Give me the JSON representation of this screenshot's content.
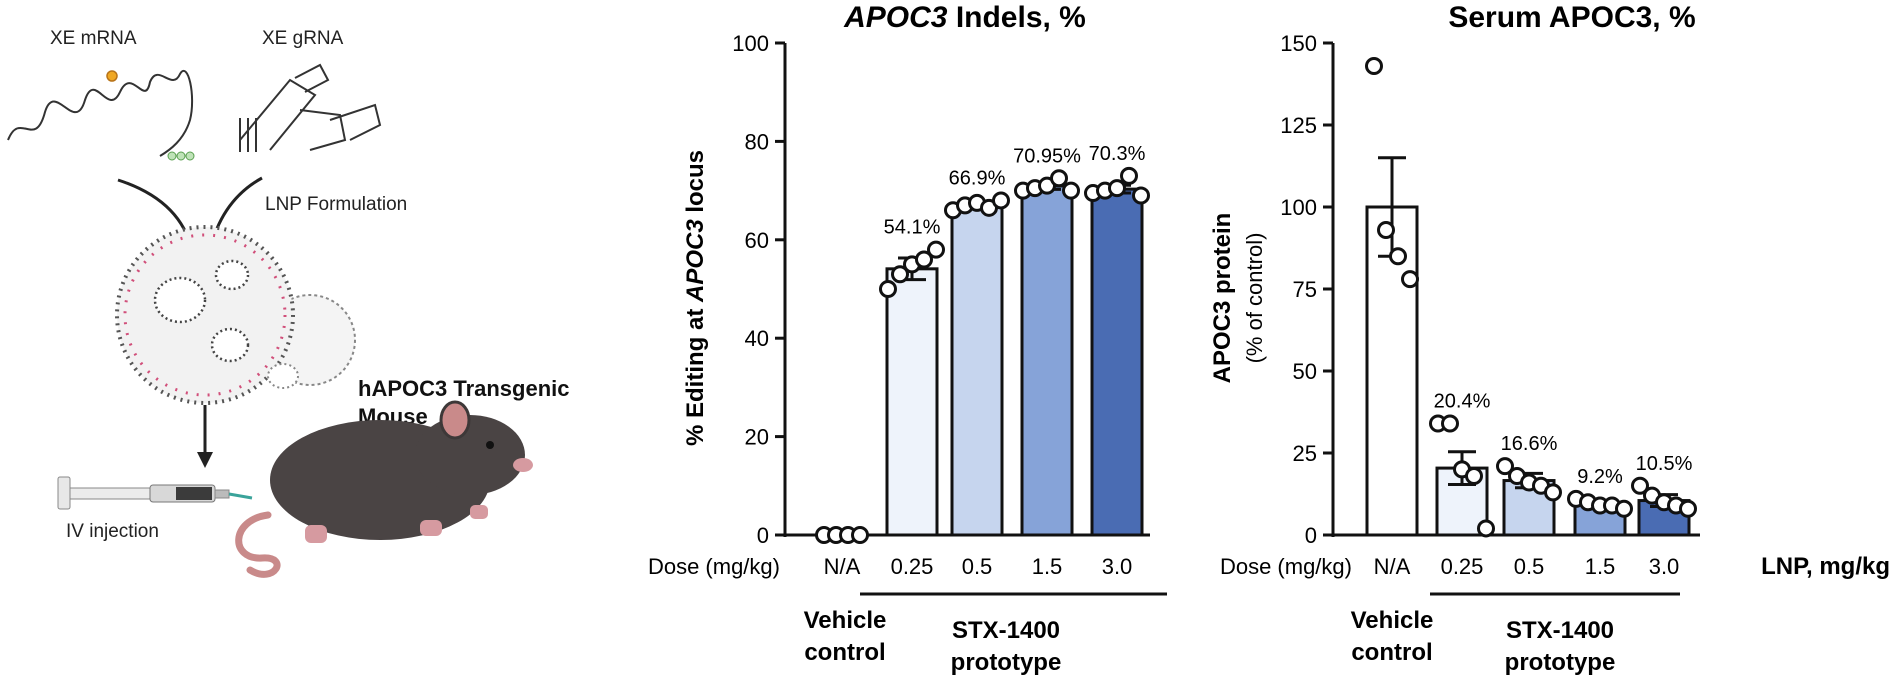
{
  "schematic": {
    "mrna_label": "XE mRNA",
    "grna_label": "XE gRNA",
    "lnp_label": "LNP Formulation",
    "mouse_label": "hAPOC3 Transgenic Mouse",
    "iv_label": "IV injection"
  },
  "charts": {
    "dose_prefix": "Dose (mg/kg)",
    "vehicle_label": [
      "Vehicle",
      "control"
    ],
    "product_label": [
      "STX-1400",
      "prototype"
    ],
    "lnp_label": "LNP, mg/kg"
  },
  "colors": {
    "bar_0.25": "#eef3fb",
    "bar_0.5": "#c6d5ee",
    "bar_1.5": "#86a3d8",
    "bar_3.0": "#4a6cb3",
    "vehicle": "#ffffff"
  },
  "chart_data": [
    {
      "type": "bar",
      "title_italic": "APOC3",
      "title_rest": " Indels, %",
      "ylabel_parts": [
        "% Editing at ",
        "APOC3",
        " locus"
      ],
      "ylim": [
        0,
        100
      ],
      "yticks": [
        "0",
        "20",
        "40",
        "60",
        "80",
        "100"
      ],
      "categories": [
        "N/A",
        "0.25",
        "0.5",
        "1.5",
        "3.0"
      ],
      "values": [
        0,
        54.1,
        66.9,
        70.95,
        70.3
      ],
      "error": [
        0,
        2.2,
        0.6,
        0.7,
        0.8
      ],
      "data_labels": [
        "",
        "54.1%",
        "66.9%",
        "70.95%",
        "70.3%"
      ],
      "points": [
        [
          0,
          0,
          0,
          0
        ],
        [
          50,
          53,
          55,
          56,
          58
        ],
        [
          66,
          67,
          67.5,
          66.5,
          68
        ],
        [
          70,
          70.5,
          71,
          72.5,
          70
        ],
        [
          69.5,
          70,
          70.5,
          73,
          69
        ]
      ]
    },
    {
      "type": "bar",
      "title": "Serum APOC3, %",
      "ylabel": "APOC3 protein",
      "ylabel_sub": "(% of control)",
      "ylim": [
        0,
        150
      ],
      "yticks": [
        "0",
        "25",
        "50",
        "75",
        "100",
        "125",
        "150"
      ],
      "categories": [
        "N/A",
        "0.25",
        "0.5",
        "1.5",
        "3.0"
      ],
      "values": [
        100,
        20.4,
        16.6,
        9.2,
        10.5
      ],
      "error": [
        15,
        5,
        2.2,
        1,
        1.8
      ],
      "data_labels": [
        "",
        "20.4%",
        "16.6%",
        "9.2%",
        "10.5%"
      ],
      "points": [
        [
          143,
          93,
          85,
          78
        ],
        [
          34,
          34,
          20,
          18,
          2
        ],
        [
          21,
          18,
          16,
          15,
          13
        ],
        [
          11,
          10,
          9,
          9,
          8
        ],
        [
          15,
          12,
          10,
          9,
          8
        ]
      ]
    }
  ]
}
